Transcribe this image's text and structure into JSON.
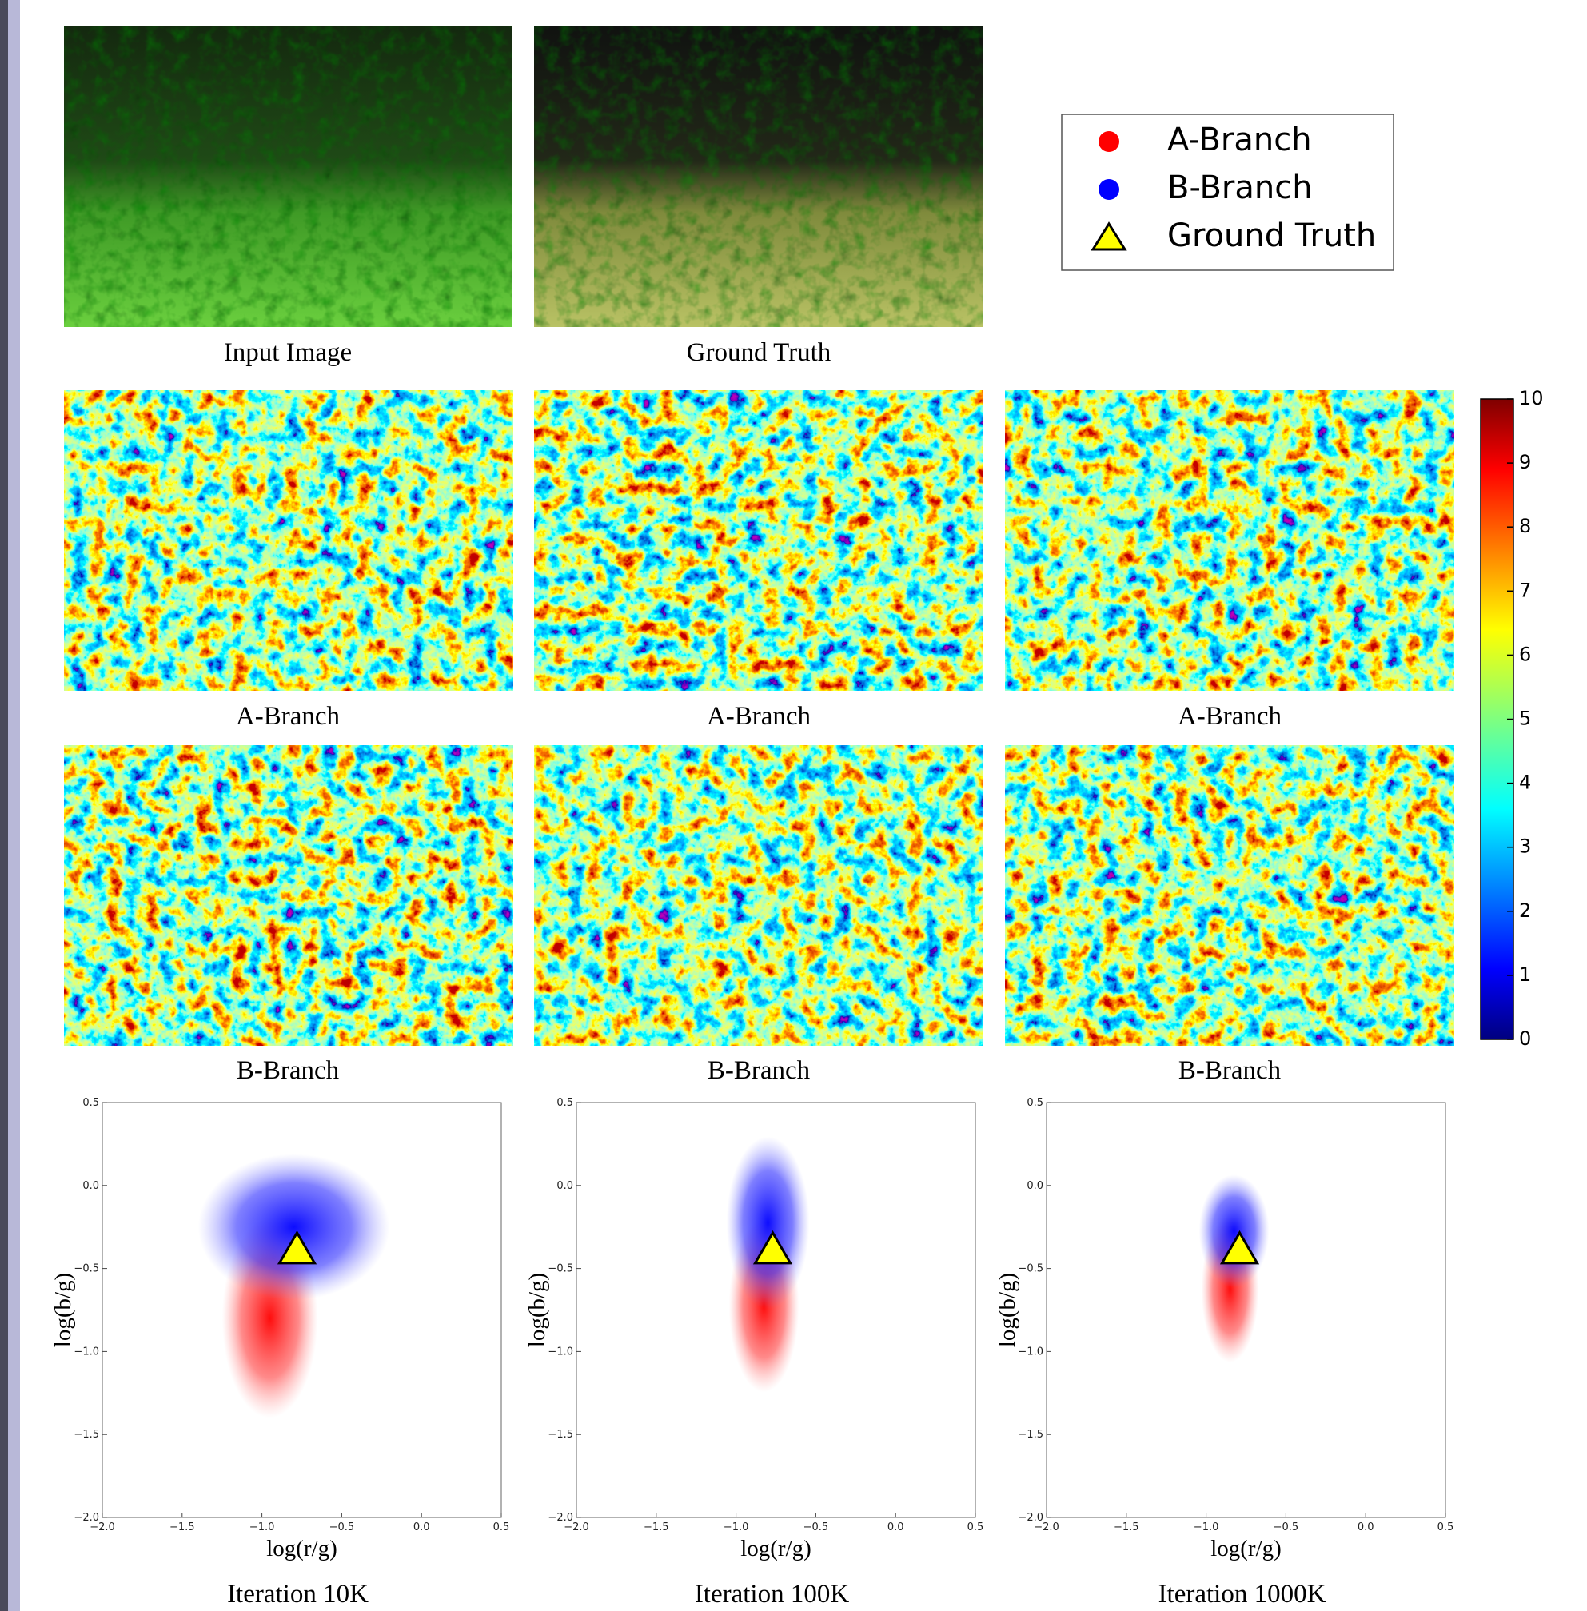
{
  "figure": {
    "captions": {
      "input_image": "Input Image",
      "ground_truth": "Ground Truth",
      "a_branch": [
        "A-Branch",
        "A-Branch",
        "A-Branch"
      ],
      "b_branch": [
        "B-Branch",
        "B-Branch",
        "B-Branch"
      ]
    }
  },
  "legend": {
    "entries": [
      {
        "label": "A-Branch",
        "color": "#ff0000",
        "marker": "circle"
      },
      {
        "label": "B-Branch",
        "color": "#0000ff",
        "marker": "circle"
      },
      {
        "label": "Ground Truth",
        "color": "#ffff00",
        "marker": "triangle"
      }
    ]
  },
  "colorbar": {
    "lim": [
      0,
      10
    ],
    "ticks": [
      0,
      1,
      2,
      3,
      4,
      5,
      6,
      7,
      8,
      9,
      10
    ],
    "colormap": "jet"
  },
  "chart_data": [
    {
      "type": "scatter",
      "title": "Iteration 10K",
      "x_label": "log(r/g)",
      "y_label": "log(b/g)",
      "xlim": [
        -2,
        0.5
      ],
      "ylim": [
        -2,
        0.5
      ],
      "xticks": [
        {
          "value": -2,
          "label": "−2.0"
        },
        {
          "value": -1.5,
          "label": "−1.5"
        },
        {
          "value": -1,
          "label": "−1.0"
        },
        {
          "value": -0.5,
          "label": "−0.5"
        },
        {
          "value": 0,
          "label": "0.0"
        },
        0.5
      ],
      "yticks": [
        {
          "value": -2,
          "label": "−2.0"
        },
        {
          "value": -1.5,
          "label": "−1.5"
        },
        {
          "value": -1,
          "label": "−1.0"
        },
        {
          "value": -0.5,
          "label": "−0.5"
        },
        {
          "value": 0,
          "label": "0.0"
        },
        0.5
      ],
      "series": [
        {
          "name": "Ground Truth",
          "color": "#ffff00",
          "x": [
            -0.78
          ],
          "values": [
            -0.4
          ]
        }
      ]
    },
    {
      "type": "scatter",
      "title": "Iteration 100K",
      "x_label": "log(r/g)",
      "y_label": "log(b/g)",
      "xlim": [
        -2,
        0.5
      ],
      "ylim": [
        -2,
        0.5
      ],
      "xticks": [
        {
          "value": -2,
          "label": "−2.0"
        },
        {
          "value": -1.5,
          "label": "−1.5"
        },
        {
          "value": -1,
          "label": "−1.0"
        },
        {
          "value": -0.5,
          "label": "−0.5"
        },
        {
          "value": 0,
          "label": "0.0"
        },
        0.5
      ],
      "yticks": [
        {
          "value": -2,
          "label": "−2.0"
        },
        {
          "value": -1.5,
          "label": "−1.5"
        },
        {
          "value": -1,
          "label": "−1.0"
        },
        {
          "value": -0.5,
          "label": "−0.5"
        },
        {
          "value": 0,
          "label": "0.0"
        },
        0.5
      ],
      "series": [
        {
          "name": "Ground Truth",
          "color": "#ffff00",
          "x": [
            -0.77
          ],
          "values": [
            -0.4
          ]
        }
      ]
    },
    {
      "type": "scatter",
      "title": "Iteration 1000K",
      "x_label": "log(r/g)",
      "y_label": "log(b/g)",
      "xlim": [
        -2,
        0.5
      ],
      "ylim": [
        -2,
        0.5
      ],
      "xticks": [
        {
          "value": -2,
          "label": "−2.0"
        },
        {
          "value": -1.5,
          "label": "−1.5"
        },
        {
          "value": -1,
          "label": "−1.0"
        },
        {
          "value": -0.5,
          "label": "−0.5"
        },
        {
          "value": 0,
          "label": "0.0"
        },
        0.5
      ],
      "yticks": [
        {
          "value": -2,
          "label": "−2.0"
        },
        {
          "value": -1.5,
          "label": "−1.5"
        },
        {
          "value": -1,
          "label": "−1.0"
        },
        {
          "value": -0.5,
          "label": "−0.5"
        },
        {
          "value": 0,
          "label": "0.0"
        },
        0.5
      ],
      "series": [
        {
          "name": "Ground Truth",
          "color": "#ffff00",
          "x": [
            -0.79
          ],
          "values": [
            -0.4
          ]
        }
      ]
    }
  ]
}
